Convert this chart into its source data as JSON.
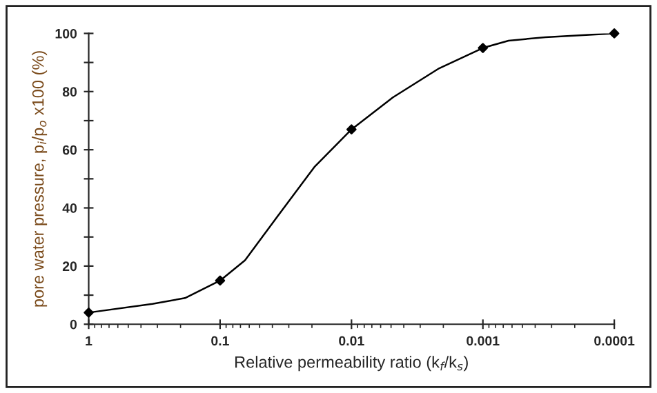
{
  "chart_data": {
    "type": "line",
    "xlabel": "Relative permeability ratio (k$_{f}$/k$_{s}$)",
    "ylabel": "pore water pressure, p$_{i}$/p$_{o}$ x100 (%)",
    "series": [
      {
        "color": "#000000",
        "marker": "none",
        "x": [
          1,
          0.327,
          0.185,
          0.1,
          0.0646,
          0.0367,
          0.0192,
          0.01,
          0.00484,
          0.00215,
          0.001,
          0.000638,
          0.000334,
          0.0001
        ],
        "values": [
          4,
          7,
          9,
          15,
          22,
          37,
          54,
          67,
          78,
          88,
          95,
          97.5,
          98.7,
          100
        ]
      },
      {
        "type": "scatter",
        "color": "#000000",
        "marker": "diamond",
        "x": [
          1,
          0.1,
          0.01,
          0.001,
          0.0001
        ],
        "values": [
          4,
          15,
          67,
          95,
          100
        ]
      }
    ],
    "log": "x",
    "xlim": [
      1,
      0.0001
    ],
    "xticks": [
      1,
      0.1,
      0.01,
      0.001,
      0.0001
    ],
    "ylim": [
      0,
      100
    ],
    "yticks": [
      0,
      {
        "value": 10,
        "label": null
      },
      20,
      {
        "value": 30,
        "label": null
      },
      40,
      {
        "value": 50,
        "label": null
      },
      60,
      {
        "value": 70,
        "label": null
      },
      80,
      {
        "value": 90,
        "label": null
      },
      100
    ],
    "grid": false,
    "legend": false
  }
}
